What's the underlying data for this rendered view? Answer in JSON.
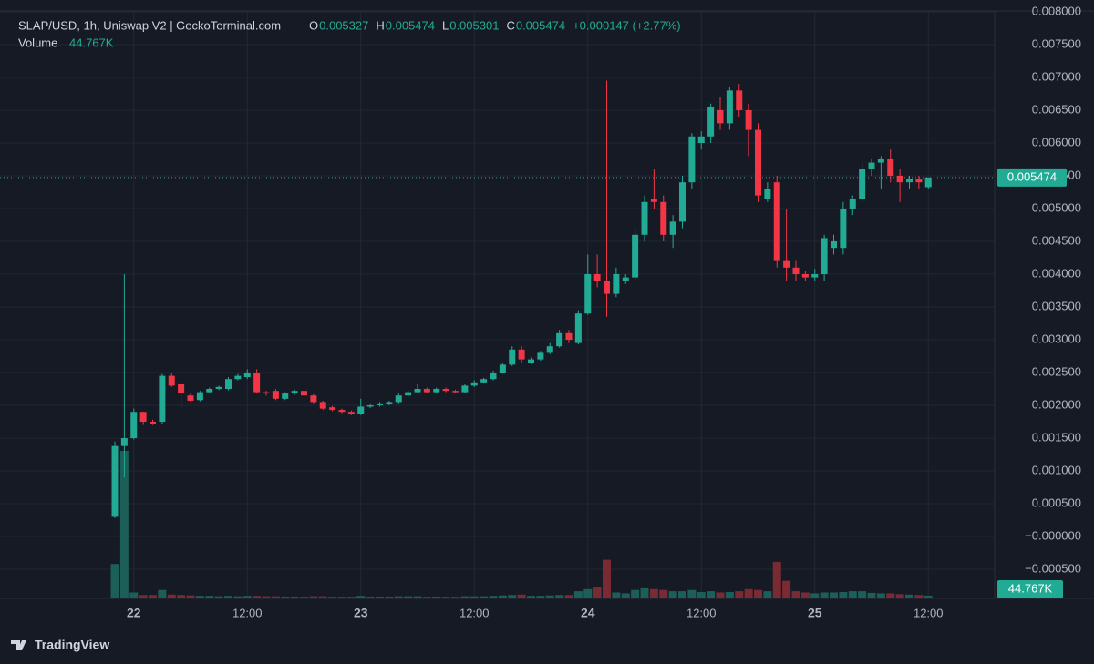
{
  "chart_data": {
    "type": "candlestick",
    "title": "SLAP/USD, 1h, Uniswap V2 | GeckoTerminal.com",
    "ohlc_labels": [
      "O",
      "H",
      "L",
      "C"
    ],
    "change": "+0.000147 (+2.77%)",
    "brand": "TradingView",
    "up_color": "#22ab94",
    "down_color": "#f23645",
    "volume_up_color": "#1b5f58",
    "volume_down_color": "#7a2a33",
    "grid": true,
    "categories": [
      null,
      null,
      "22",
      null,
      null,
      null,
      null,
      null,
      null,
      null,
      null,
      null,
      null,
      null,
      "12:00",
      null,
      null,
      null,
      null,
      null,
      null,
      null,
      null,
      null,
      null,
      null,
      "23",
      null,
      null,
      null,
      null,
      null,
      null,
      null,
      null,
      null,
      null,
      null,
      "12:00",
      null,
      null,
      null,
      null,
      null,
      null,
      null,
      null,
      null,
      null,
      null,
      "24",
      null,
      null,
      null,
      null,
      null,
      null,
      null,
      null,
      null,
      null,
      null,
      "12:00",
      null,
      null,
      null,
      null,
      null,
      null,
      null,
      null,
      null,
      null,
      null,
      "25",
      null,
      null,
      null,
      null,
      null,
      null,
      null,
      null,
      null,
      null,
      null,
      "12:00"
    ],
    "open": [
      0.0003,
      0.00138,
      0.0015,
      0.0019,
      0.00175,
      0.00175,
      0.00245,
      0.00232,
      0.00215,
      0.00208,
      0.0022,
      0.00225,
      0.00225,
      0.0024,
      0.00243,
      0.0025,
      0.0022,
      0.00222,
      0.0021,
      0.00218,
      0.00222,
      0.00215,
      0.00205,
      0.00197,
      0.00193,
      0.0019,
      0.00187,
      0.00198,
      0.002,
      0.00202,
      0.00205,
      0.00215,
      0.0022,
      0.00225,
      0.0022,
      0.00225,
      0.00222,
      0.0022,
      0.0023,
      0.00235,
      0.0024,
      0.0025,
      0.00262,
      0.00285,
      0.00265,
      0.0027,
      0.0028,
      0.0029,
      0.0031,
      0.00295,
      0.0034,
      0.004,
      0.0039,
      0.0037,
      0.0039,
      0.00395,
      0.0046,
      0.00515,
      0.0051,
      0.0046,
      0.0048,
      0.0054,
      0.006,
      0.0061,
      0.0065,
      0.0063,
      0.0068,
      0.0065,
      0.0062,
      0.00515,
      0.0054,
      0.0042,
      0.0041,
      0.004,
      0.00395,
      0.004,
      0.0044,
      0.0044,
      0.005,
      0.00515,
      0.0056,
      0.0057,
      0.00575,
      0.0055,
      0.0054,
      0.00545,
      0.005327
    ],
    "high": [
      0.00145,
      0.004,
      0.00195,
      0.0019,
      0.00178,
      0.00248,
      0.0025,
      0.00235,
      0.00218,
      0.00222,
      0.00227,
      0.0023,
      0.00243,
      0.00248,
      0.00255,
      0.00255,
      0.00222,
      0.00225,
      0.0022,
      0.00224,
      0.00224,
      0.00217,
      0.00207,
      0.00199,
      0.00195,
      0.00192,
      0.0021,
      0.00203,
      0.00205,
      0.00207,
      0.00218,
      0.00223,
      0.00232,
      0.00227,
      0.00227,
      0.00227,
      0.00224,
      0.00232,
      0.00238,
      0.00242,
      0.00253,
      0.00265,
      0.0029,
      0.0029,
      0.00273,
      0.00283,
      0.00295,
      0.00315,
      0.00315,
      0.00345,
      0.0043,
      0.0043,
      0.00695,
      0.0041,
      0.004,
      0.0047,
      0.0052,
      0.0056,
      0.0052,
      0.0049,
      0.0055,
      0.00615,
      0.00618,
      0.0066,
      0.0067,
      0.00685,
      0.0069,
      0.0066,
      0.0063,
      0.0054,
      0.0055,
      0.005,
      0.0042,
      0.00405,
      0.00408,
      0.0046,
      0.0046,
      0.0051,
      0.0052,
      0.0057,
      0.00575,
      0.0058,
      0.0059,
      0.0056,
      0.0055,
      0.0055,
      0.005474
    ],
    "low": [
      0.00028,
      0.0009,
      0.00148,
      0.0017,
      0.0017,
      0.00172,
      0.00228,
      0.00198,
      0.00205,
      0.00206,
      0.00218,
      0.00223,
      0.00223,
      0.00238,
      0.0024,
      0.00218,
      0.00215,
      0.00208,
      0.00208,
      0.00216,
      0.00213,
      0.00203,
      0.00193,
      0.00191,
      0.00188,
      0.00185,
      0.00185,
      0.00196,
      0.00198,
      0.002,
      0.00203,
      0.00212,
      0.00218,
      0.00218,
      0.00218,
      0.0022,
      0.00218,
      0.00218,
      0.00228,
      0.00233,
      0.00238,
      0.00248,
      0.0026,
      0.00265,
      0.00263,
      0.00268,
      0.00278,
      0.00288,
      0.00295,
      0.00293,
      0.00338,
      0.0038,
      0.00335,
      0.00365,
      0.00385,
      0.0039,
      0.0045,
      0.005,
      0.0045,
      0.0044,
      0.0047,
      0.0053,
      0.0059,
      0.006,
      0.0062,
      0.0062,
      0.0064,
      0.0058,
      0.0051,
      0.0051,
      0.0041,
      0.0039,
      0.0039,
      0.0039,
      0.0039,
      0.0039,
      0.0043,
      0.0043,
      0.0049,
      0.0051,
      0.0055,
      0.0053,
      0.0054,
      0.0051,
      0.0053,
      0.0053,
      0.005301
    ],
    "close": [
      0.00138,
      0.0015,
      0.0019,
      0.00175,
      0.00172,
      0.00245,
      0.0023,
      0.00218,
      0.00207,
      0.0022,
      0.00225,
      0.00228,
      0.0024,
      0.00245,
      0.0025,
      0.0022,
      0.00218,
      0.0021,
      0.00218,
      0.00222,
      0.00215,
      0.00205,
      0.00195,
      0.00193,
      0.0019,
      0.00187,
      0.00198,
      0.002,
      0.00203,
      0.00205,
      0.00215,
      0.0022,
      0.00225,
      0.0022,
      0.00225,
      0.00222,
      0.0022,
      0.0023,
      0.00235,
      0.0024,
      0.0025,
      0.00262,
      0.00285,
      0.0027,
      0.0027,
      0.0028,
      0.0029,
      0.0031,
      0.003,
      0.0034,
      0.004,
      0.0039,
      0.0037,
      0.004,
      0.00395,
      0.0046,
      0.0051,
      0.0051,
      0.0046,
      0.0048,
      0.0054,
      0.0061,
      0.0061,
      0.00655,
      0.0063,
      0.0068,
      0.0065,
      0.0062,
      0.0052,
      0.0053,
      0.0042,
      0.0041,
      0.004,
      0.00395,
      0.004,
      0.00455,
      0.0045,
      0.005,
      0.00515,
      0.0056,
      0.0057,
      0.00575,
      0.0055,
      0.0054,
      0.00545,
      0.0054,
      0.005474
    ],
    "volume": {
      "name": "Volume",
      "values": [
        800000,
        3500000,
        120000,
        60000,
        60000,
        180000,
        70000,
        60000,
        50000,
        40000,
        40000,
        30000,
        40000,
        30000,
        40000,
        40000,
        30000,
        30000,
        20000,
        20000,
        20000,
        30000,
        30000,
        20000,
        20000,
        20000,
        40000,
        20000,
        20000,
        20000,
        30000,
        30000,
        30000,
        20000,
        20000,
        20000,
        20000,
        30000,
        30000,
        30000,
        40000,
        50000,
        60000,
        70000,
        40000,
        40000,
        50000,
        60000,
        60000,
        150000,
        200000,
        250000,
        900000,
        120000,
        100000,
        180000,
        220000,
        200000,
        180000,
        150000,
        150000,
        180000,
        130000,
        150000,
        120000,
        130000,
        150000,
        200000,
        180000,
        150000,
        850000,
        400000,
        150000,
        120000,
        100000,
        120000,
        120000,
        130000,
        150000,
        150000,
        110000,
        100000,
        100000,
        80000,
        70000,
        60000,
        44767
      ],
      "value_labels": [
        null,
        null,
        null,
        null,
        null,
        null,
        null,
        null,
        null,
        null,
        null,
        null,
        null,
        null,
        null,
        null,
        null,
        null,
        null,
        null,
        null,
        null,
        null,
        null,
        null,
        null,
        null,
        null,
        null,
        null,
        null,
        null,
        null,
        null,
        null,
        null,
        null,
        null,
        null,
        null,
        null,
        null,
        null,
        null,
        null,
        null,
        null,
        null,
        null,
        null,
        null,
        null,
        null,
        null,
        null,
        null,
        null,
        null,
        null,
        null,
        null,
        null,
        null,
        null,
        null,
        null,
        null,
        null,
        null,
        null,
        null,
        null,
        null,
        null,
        null,
        null,
        null,
        null,
        null,
        null,
        null,
        null,
        null,
        null,
        null,
        null,
        "44.767K"
      ]
    },
    "ylim": [
      -0.00093,
      0.00818
    ],
    "yticks": [
      {
        "value": 0.008,
        "label": "0.008000"
      },
      {
        "value": 0.0075,
        "label": "0.007500"
      },
      {
        "value": 0.007,
        "label": "0.007000"
      },
      {
        "value": 0.0065,
        "label": "0.006500"
      },
      {
        "value": 0.006,
        "label": "0.006000"
      },
      {
        "value": 0.0055,
        "label": "0.005500"
      },
      {
        "value": 0.005,
        "label": "0.005000"
      },
      {
        "value": 0.0045,
        "label": "0.004500"
      },
      {
        "value": 0.004,
        "label": "0.004000"
      },
      {
        "value": 0.0035,
        "label": "0.003500"
      },
      {
        "value": 0.003,
        "label": "0.003000"
      },
      {
        "value": 0.0025,
        "label": "0.002500"
      },
      {
        "value": 0.002,
        "label": "0.002000"
      },
      {
        "value": 0.0015,
        "label": "0.001500"
      },
      {
        "value": 0.001,
        "label": "0.001000"
      },
      {
        "value": 0.0005,
        "label": "0.000500"
      },
      {
        "value": 0,
        "label": "−0.000000"
      },
      {
        "value": -0.0005,
        "label": "−0.000500"
      }
    ]
  }
}
